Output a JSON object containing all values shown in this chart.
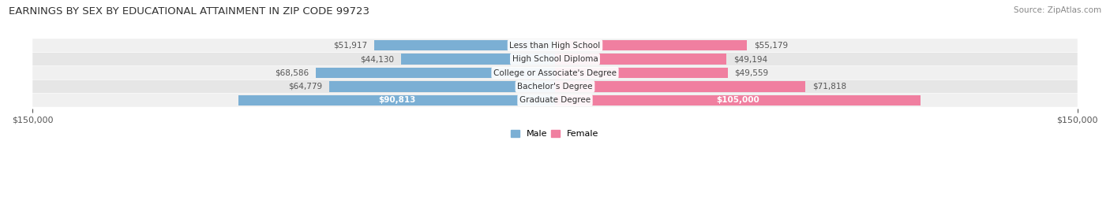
{
  "title": "EARNINGS BY SEX BY EDUCATIONAL ATTAINMENT IN ZIP CODE 99723",
  "source": "Source: ZipAtlas.com",
  "categories": [
    "Less than High School",
    "High School Diploma",
    "College or Associate's Degree",
    "Bachelor's Degree",
    "Graduate Degree"
  ],
  "male_values": [
    51917,
    44130,
    68586,
    64779,
    90813
  ],
  "female_values": [
    55179,
    49194,
    49559,
    71818,
    105000
  ],
  "male_color": "#7bafd4",
  "female_color": "#f07fa0",
  "row_bg_colors": [
    "#f0f0f0",
    "#e6e6e6"
  ],
  "max_value": 150000,
  "male_legend_color": "#7bafd4",
  "female_legend_color": "#f07fa0",
  "title_fontsize": 9.5,
  "source_fontsize": 7.5,
  "label_fontsize": 7.5,
  "category_fontsize": 7.5,
  "axis_label_fontsize": 8,
  "background_color": "#ffffff",
  "inside_label_color": "#ffffff",
  "outside_label_color": "#555555",
  "inside_threshold": 80000
}
